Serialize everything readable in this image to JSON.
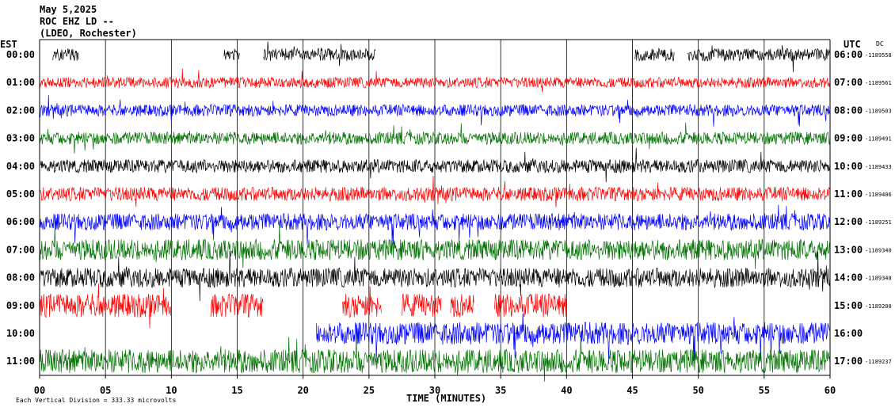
{
  "header": {
    "date": "May 5,2025",
    "station": "ROC EHZ LD --",
    "network": "(LDEO, Rochester)"
  },
  "chart_data": {
    "type": "line",
    "left_axis_label": "EST",
    "right_axis_label": "UTC",
    "dc_label": "DC",
    "xlabel": "TIME (MINUTES)",
    "xlim": [
      0,
      60
    ],
    "x_ticks": [
      "00",
      "05",
      "10",
      "15",
      "20",
      "25",
      "30",
      "35",
      "40",
      "45",
      "50",
      "55",
      "60"
    ],
    "footer_note": "Each Vertical Division = 333.33 microvolts",
    "colors": [
      "#000000",
      "#ff0000",
      "#0000ff",
      "#007000"
    ],
    "rows": [
      {
        "est": "00:00",
        "utc": "06:00",
        "dc": "-1189558",
        "color": "#000000",
        "amp": 0.45,
        "gaps": [
          [
            0,
            1
          ],
          [
            3,
            14
          ],
          [
            15.2,
            17
          ],
          [
            25.5,
            45.2
          ],
          [
            48.2,
            49.2
          ]
        ]
      },
      {
        "est": "01:00",
        "utc": "07:00",
        "dc": "-1189561",
        "color": "#ff0000",
        "amp": 0.38,
        "gaps": []
      },
      {
        "est": "02:00",
        "utc": "08:00",
        "dc": "-1189503",
        "color": "#0000ff",
        "amp": 0.42,
        "gaps": []
      },
      {
        "est": "03:00",
        "utc": "09:00",
        "dc": "-1189491",
        "color": "#007000",
        "amp": 0.45,
        "gaps": []
      },
      {
        "est": "04:00",
        "utc": "10:00",
        "dc": "-1189433",
        "color": "#000000",
        "amp": 0.48,
        "gaps": []
      },
      {
        "est": "05:00",
        "utc": "11:00",
        "dc": "-1189406",
        "color": "#ff0000",
        "amp": 0.5,
        "gaps": []
      },
      {
        "est": "06:00",
        "utc": "12:00",
        "dc": "-1189251",
        "color": "#0000ff",
        "amp": 0.6,
        "gaps": []
      },
      {
        "est": "07:00",
        "utc": "13:00",
        "dc": "-1189340",
        "color": "#007000",
        "amp": 0.75,
        "gaps": []
      },
      {
        "est": "08:00",
        "utc": "14:00",
        "dc": "-1189348",
        "color": "#000000",
        "amp": 0.7,
        "gaps": []
      },
      {
        "est": "09:00",
        "utc": "15:00",
        "dc": "-1189200",
        "color": "#ff0000",
        "amp": 0.85,
        "gaps": [
          [
            10,
            13
          ],
          [
            17,
            23
          ],
          [
            26,
            27.5
          ],
          [
            30.5,
            31.2
          ],
          [
            33,
            34.5
          ],
          [
            40,
            60
          ]
        ]
      },
      {
        "est": "10:00",
        "utc": "16:00",
        "dc": "",
        "color": "#0000ff",
        "amp": 0.8,
        "gaps": [
          [
            0,
            21
          ]
        ]
      },
      {
        "est": "11:00",
        "utc": "17:00",
        "dc": "-1189237",
        "color": "#007000",
        "amp": 0.85,
        "gaps": []
      }
    ]
  }
}
